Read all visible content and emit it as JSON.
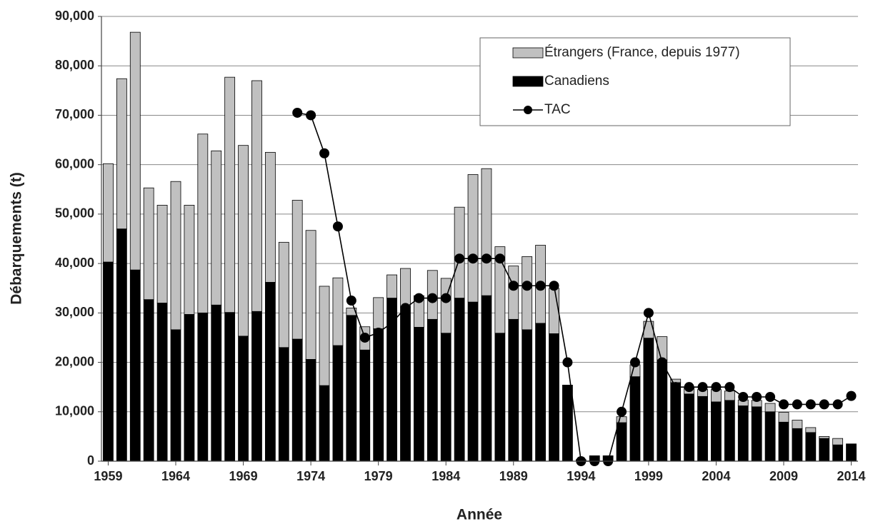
{
  "chart_data": {
    "type": "bar",
    "stacked": true,
    "x": [
      1959,
      1960,
      1961,
      1962,
      1963,
      1964,
      1965,
      1966,
      1967,
      1968,
      1969,
      1970,
      1971,
      1972,
      1973,
      1974,
      1975,
      1976,
      1977,
      1978,
      1979,
      1980,
      1981,
      1982,
      1983,
      1984,
      1985,
      1986,
      1987,
      1988,
      1989,
      1990,
      1991,
      1992,
      1993,
      1994,
      1995,
      1996,
      1997,
      1998,
      1999,
      2000,
      2001,
      2002,
      2003,
      2004,
      2005,
      2006,
      2007,
      2008,
      2009,
      2010,
      2011,
      2012,
      2013,
      2014
    ],
    "xlim": [
      1958.5,
      2014.5
    ],
    "xticks": [
      1959,
      1964,
      1969,
      1974,
      1979,
      1984,
      1989,
      1994,
      1999,
      2004,
      2009,
      2014
    ],
    "ylim": [
      0,
      90000
    ],
    "yticks": [
      0,
      {
        "value": 10000,
        "label": "10,000"
      },
      {
        "value": 20000,
        "label": "20,000"
      },
      {
        "value": 30000,
        "label": "30,000"
      },
      {
        "value": 40000,
        "label": "40,000"
      },
      {
        "value": 50000,
        "label": "50,000"
      },
      {
        "value": 60000,
        "label": "60,000"
      },
      {
        "value": 70000,
        "label": "70,000"
      },
      {
        "value": 80000,
        "label": "80,000"
      },
      {
        "value": 90000,
        "label": "90,000"
      }
    ],
    "grid": true,
    "xlabel": "Année",
    "ylabel": "Débarquements (t)",
    "legend": "top-right",
    "series": [
      {
        "name": "Canadiens",
        "type": "bar",
        "color": "#000000",
        "values": [
          40300,
          47000,
          38700,
          32700,
          32000,
          26600,
          29700,
          30000,
          31600,
          30100,
          25300,
          30300,
          36200,
          23000,
          24700,
          20600,
          15300,
          23400,
          29500,
          22500,
          26800,
          33000,
          31200,
          27100,
          28700,
          25900,
          33000,
          32200,
          33500,
          25900,
          28700,
          26600,
          27900,
          25800,
          15400,
          300,
          1100,
          1100,
          7800,
          17100,
          24900,
          20500,
          15900,
          13600,
          13100,
          12000,
          12300,
          11200,
          11000,
          10000,
          7900,
          6600,
          5800,
          4600,
          3300,
          3500
        ]
      },
      {
        "name": "Étrangers (France, depuis 1977)",
        "type": "bar",
        "color": "#c0c0c0",
        "values": [
          19900,
          30400,
          48100,
          22600,
          19800,
          30000,
          22100,
          36200,
          31200,
          47600,
          38600,
          46700,
          26300,
          21300,
          28100,
          26100,
          20100,
          13700,
          1500,
          4700,
          6300,
          4700,
          7800,
          6400,
          9900,
          11100,
          18400,
          25800,
          25700,
          17500,
          10800,
          14800,
          15800,
          9200,
          0,
          0,
          0,
          0,
          1200,
          2400,
          3400,
          4700,
          700,
          1200,
          1400,
          2500,
          1900,
          1200,
          1300,
          1700,
          2000,
          1700,
          1000,
          400,
          1300,
          0
        ]
      },
      {
        "name": "TAC",
        "type": "line",
        "color": "#000000",
        "values": [
          null,
          null,
          null,
          null,
          null,
          null,
          null,
          null,
          null,
          null,
          null,
          null,
          null,
          null,
          70500,
          70000,
          62300,
          47500,
          32500,
          25000,
          26000,
          28000,
          31000,
          33000,
          33000,
          33000,
          41000,
          41000,
          41000,
          41000,
          35500,
          35500,
          35500,
          35500,
          20000,
          0,
          0,
          0,
          10000,
          20000,
          30000,
          20000,
          15000,
          15000,
          15000,
          15000,
          15000,
          13000,
          13000,
          13000,
          11500,
          11500,
          11500,
          11500,
          11500,
          13200
        ]
      }
    ]
  }
}
